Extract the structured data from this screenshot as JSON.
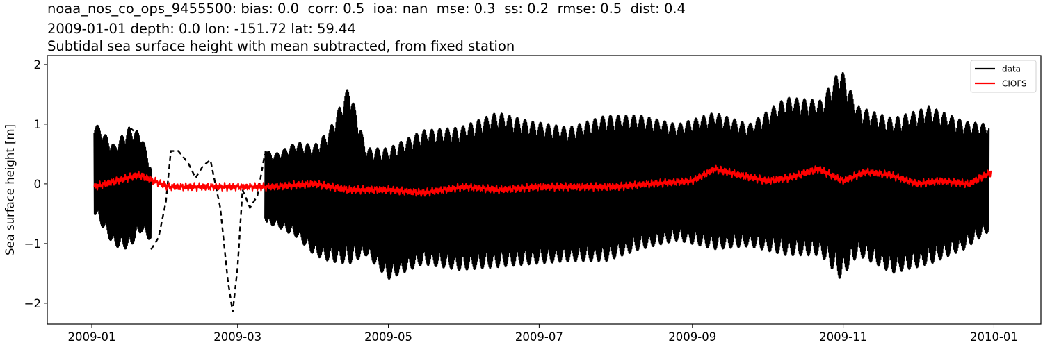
{
  "title": {
    "line1": "noaa_nos_co_ops_9455500: bias: 0.0  corr: 0.5  ioa: nan  mse: 0.3  ss: 0.2  rmse: 0.5  dist: 0.4",
    "line2": "2009-01-01 depth: 0.0 lon: -151.72 lat: 59.44",
    "line3": "Subtidal sea surface height with mean subtracted, from fixed station"
  },
  "legend": {
    "items": [
      {
        "label": "data",
        "color": "#000000"
      },
      {
        "label": "CIOFS",
        "color": "#ff0000"
      }
    ]
  },
  "chart_data": {
    "type": "line",
    "title": "Subtidal sea surface height with mean subtracted, from fixed station",
    "xlabel": "",
    "ylabel": "Sea surface height [m]",
    "ylim": [
      -2.35,
      2.15
    ],
    "xlim": [
      "2008-12-14",
      "2010-01-20"
    ],
    "yticks": [
      -2,
      -1,
      0,
      1,
      2
    ],
    "ytick_labels": [
      "−2",
      "−1",
      "0",
      "1",
      "2"
    ],
    "xticks": [
      "2009-01",
      "2009-03",
      "2009-05",
      "2009-07",
      "2009-09",
      "2009-11",
      "2010-01"
    ],
    "grid": false,
    "legend_position": "upper right",
    "series": [
      {
        "name": "data",
        "color": "#000000",
        "style": "solid line with dashed/dotted segments in gap (Jan–Mar)",
        "description": "Tidal-like oscillations with spring-neap envelope",
        "x": [
          "2009-01-02",
          "2009-01-10",
          "2009-01-16",
          "2009-01-21",
          "2009-01-27",
          "2009-02-01",
          "2009-02-04",
          "2009-02-10",
          "2009-02-15",
          "2009-02-22",
          "2009-02-27",
          "2009-03-05",
          "2009-03-10",
          "2009-03-13",
          "2009-03-16",
          "2009-03-25",
          "2009-04-01",
          "2009-04-07",
          "2009-04-15",
          "2009-04-22",
          "2009-05-01",
          "2009-05-15",
          "2009-05-30",
          "2009-06-14",
          "2009-06-28",
          "2009-07-13",
          "2009-07-28",
          "2009-08-11",
          "2009-08-26",
          "2009-09-10",
          "2009-09-24",
          "2009-10-09",
          "2009-10-23",
          "2009-10-31",
          "2009-11-07",
          "2009-11-21",
          "2009-12-06",
          "2009-12-20",
          "2009-12-30"
        ],
        "upper": [
          1.05,
          0.65,
          0.95,
          0.85,
          0.0,
          0.6,
          0.6,
          0.3,
          0.4,
          0.0,
          -2.15,
          0.1,
          1.05,
          0.55,
          0.5,
          0.7,
          0.65,
          0.9,
          1.65,
          0.6,
          0.6,
          0.9,
          0.95,
          1.2,
          1.05,
          0.95,
          1.15,
          1.15,
          1.0,
          1.2,
          1.0,
          1.45,
          1.4,
          1.95,
          1.3,
          1.1,
          1.3,
          1.05,
          1.0
        ],
        "lower": [
          -0.5,
          -1.05,
          -1.1,
          -0.8,
          -1.05,
          -1.1,
          0.0,
          0.1,
          0.1,
          -1.7,
          -2.15,
          -0.4,
          -0.3,
          -0.7,
          -0.7,
          -0.9,
          -1.2,
          -1.3,
          -1.35,
          -1.2,
          -1.6,
          -1.35,
          -1.45,
          -1.4,
          -1.35,
          -1.3,
          -1.3,
          -1.1,
          -0.95,
          -1.1,
          -1.05,
          -1.2,
          -1.2,
          -1.6,
          -1.2,
          -1.5,
          -1.35,
          -1.1,
          -0.8
        ]
      },
      {
        "name": "CIOFS",
        "color": "#ff0000",
        "style": "solid line",
        "x": [
          "2009-01-02",
          "2009-01-20",
          "2009-02-01",
          "2009-02-15",
          "2009-03-01",
          "2009-03-15",
          "2009-04-01",
          "2009-04-15",
          "2009-05-01",
          "2009-05-15",
          "2009-06-01",
          "2009-06-15",
          "2009-07-01",
          "2009-07-15",
          "2009-08-01",
          "2009-08-15",
          "2009-09-01",
          "2009-09-10",
          "2009-09-20",
          "2009-10-01",
          "2009-10-10",
          "2009-10-22",
          "2009-11-01",
          "2009-11-10",
          "2009-11-20",
          "2009-12-01",
          "2009-12-10",
          "2009-12-22",
          "2009-12-31"
        ],
        "values": [
          -0.05,
          0.15,
          -0.05,
          -0.05,
          -0.05,
          -0.05,
          0.0,
          -0.1,
          -0.1,
          -0.15,
          -0.05,
          -0.1,
          -0.05,
          -0.05,
          -0.05,
          0.0,
          0.05,
          0.25,
          0.15,
          0.05,
          0.1,
          0.25,
          0.05,
          0.2,
          0.15,
          0.0,
          0.05,
          0.0,
          0.2
        ]
      }
    ]
  }
}
